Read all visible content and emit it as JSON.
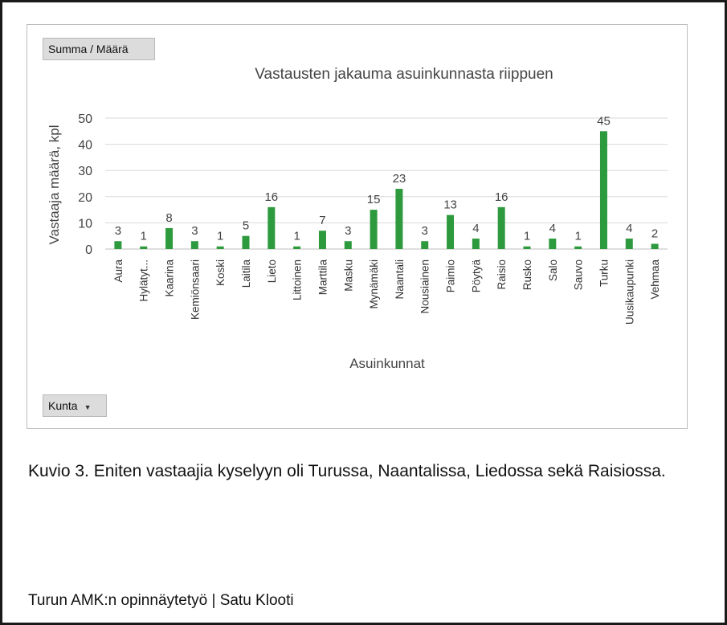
{
  "pivot": {
    "value_field": "Summa  / Määrä",
    "axis_field": "Kunta",
    "axis_dropdown_icon": "dropdown-arrow-icon"
  },
  "caption": "Kuvio 3. Eniten vastaajia kyselyyn oli Turussa, Naantalissa, Liedossa sekä Raisiossa.",
  "footer": "Turun AMK:n opinnäytetyö | Satu Klooti",
  "chart_data": {
    "type": "bar",
    "title": "Vastausten jakauma asuinkunnasta riippuen",
    "xlabel": "Asuinkunnat",
    "ylabel": "Vastaaja määrä, kpl",
    "ylim": [
      0,
      50
    ],
    "yticks": [
      0,
      10,
      20,
      30,
      40,
      50
    ],
    "grid": true,
    "legend": "none",
    "categories": [
      "Aura",
      "Hylätyt...",
      "Kaarina",
      "Kemiönsaari",
      "Koski",
      "Laitila",
      "Lieto",
      "Littoinen",
      "Marttila",
      "Masku",
      "Mynämäki",
      "Naantali",
      "Nousiainen",
      "Paimio",
      "Pöytyä",
      "Raisio",
      "Rusko",
      "Salo",
      "Sauvo",
      "Turku",
      "Uusikaupunki",
      "Vehmaa"
    ],
    "values": [
      3,
      1,
      8,
      3,
      1,
      5,
      16,
      1,
      7,
      3,
      15,
      23,
      3,
      13,
      4,
      16,
      1,
      4,
      1,
      45,
      4,
      2
    ],
    "bar_color": "#2e9a3e"
  }
}
